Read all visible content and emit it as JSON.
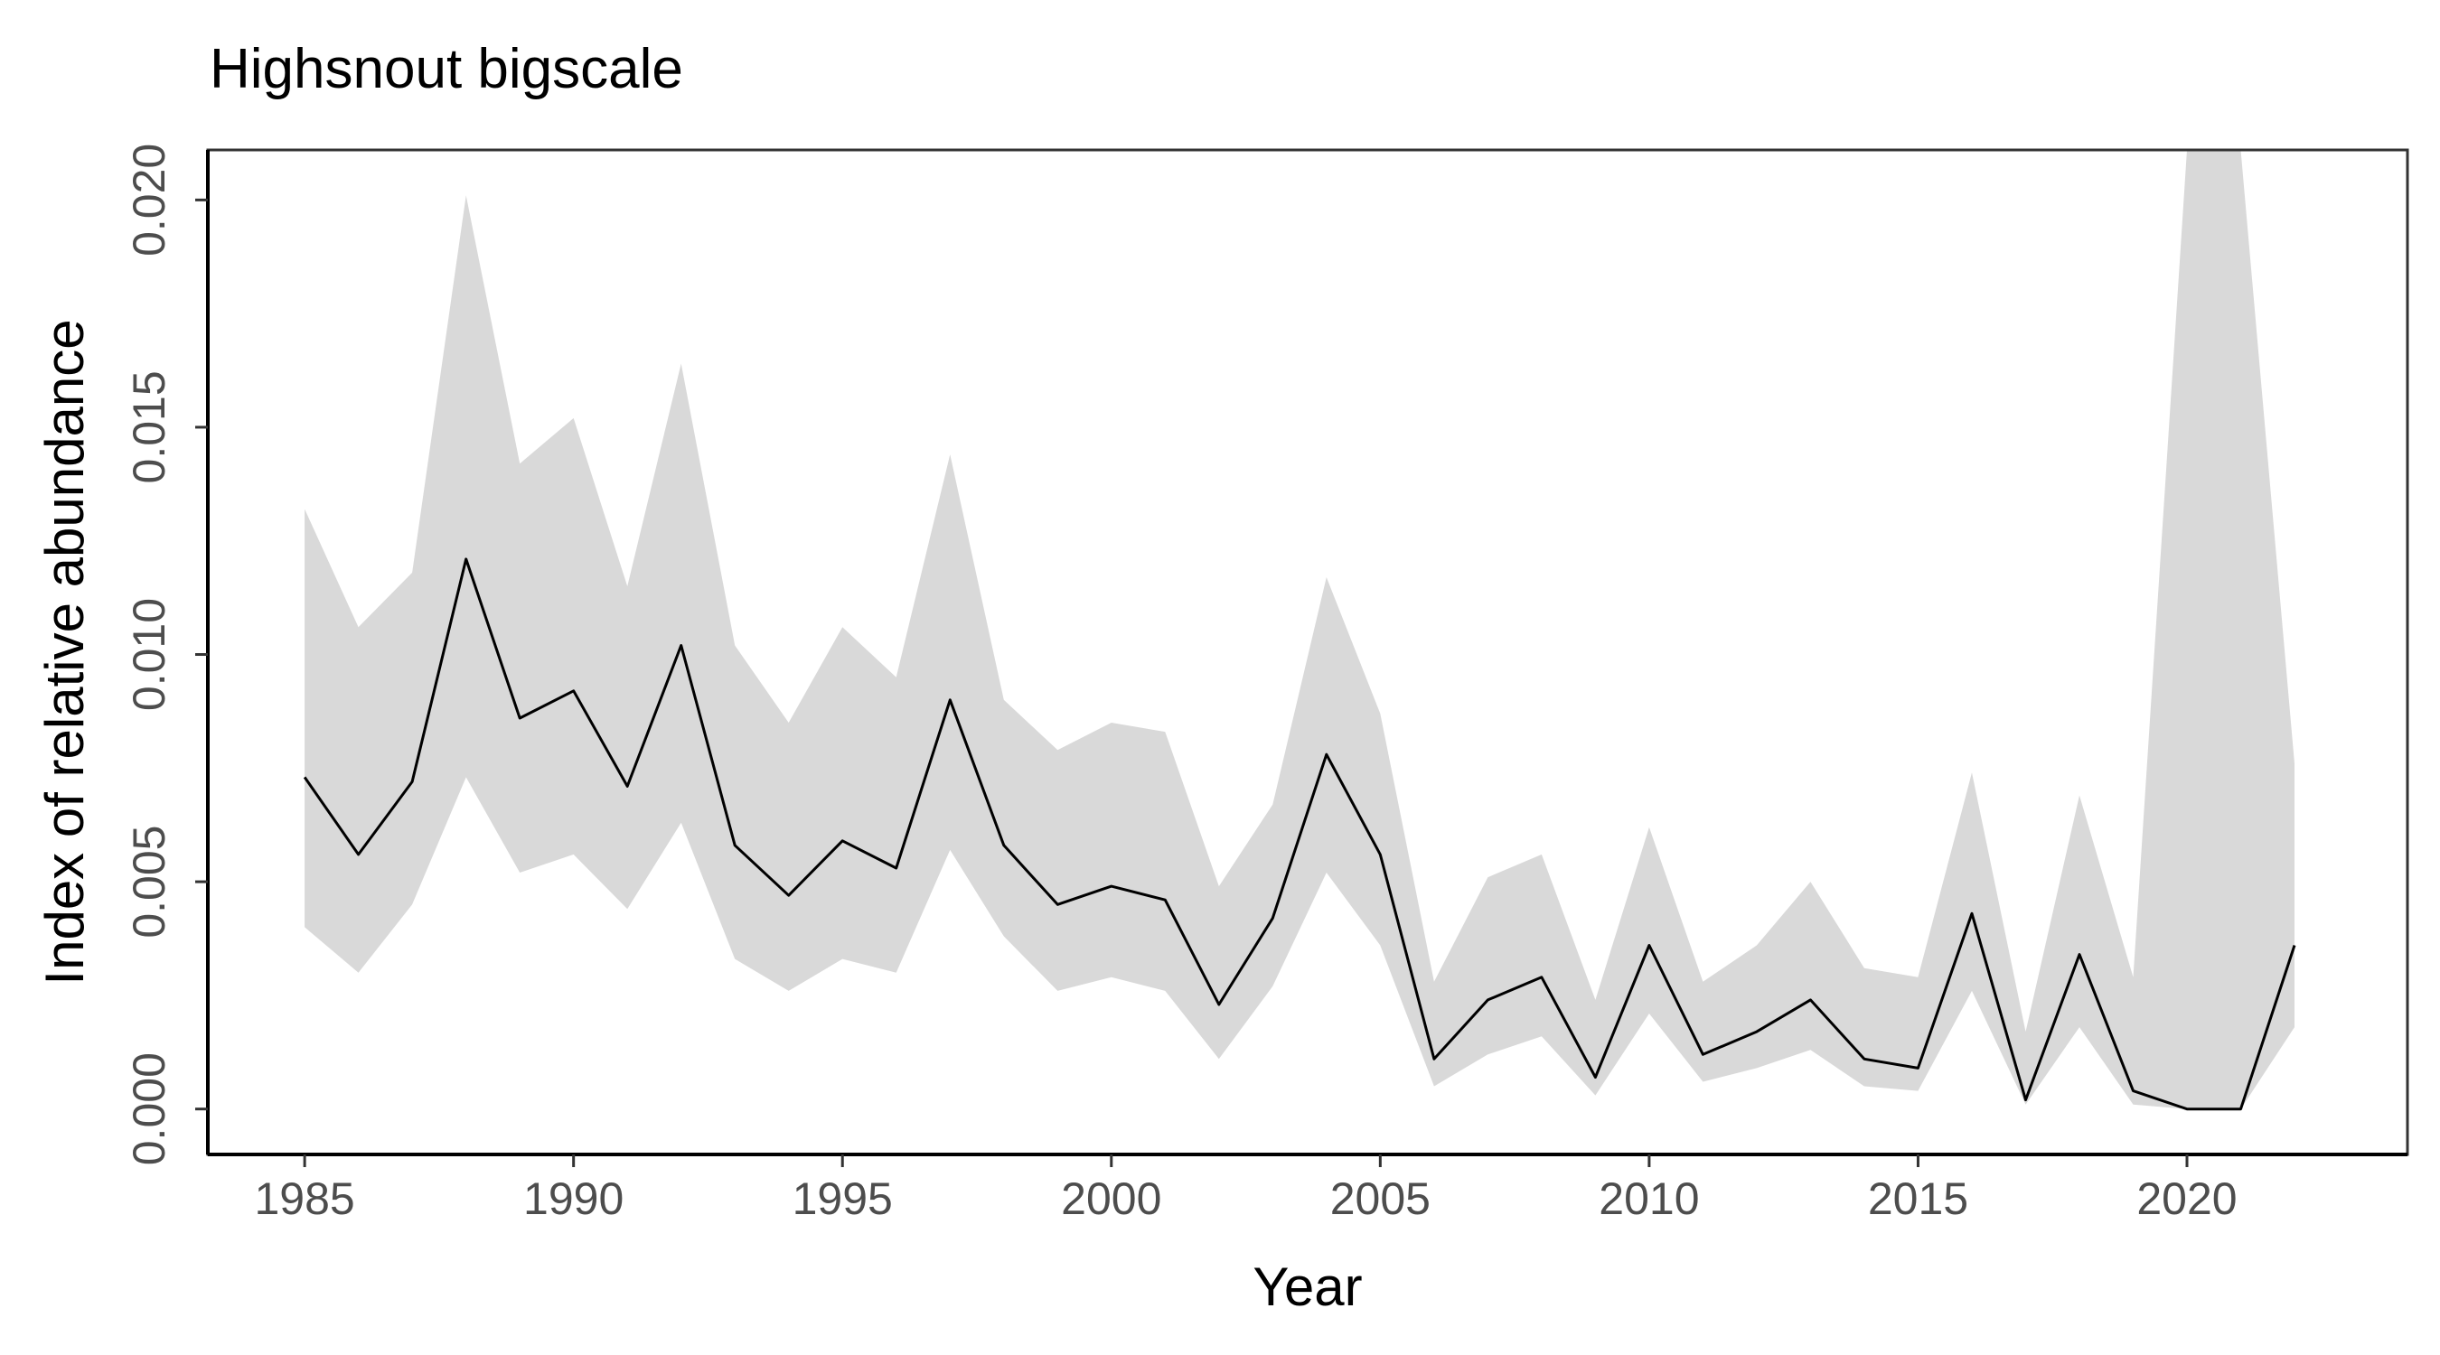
{
  "chart_data": {
    "type": "line",
    "title": "Highsnout bigscale",
    "xlabel": "Year",
    "ylabel": "Index of relative abundance",
    "xlim": [
      1983.2,
      2024.1
    ],
    "ylim": [
      -0.001,
      0.0211
    ],
    "x_ticks": [
      1985,
      1990,
      1995,
      2000,
      2005,
      2010,
      2015,
      2020
    ],
    "x_tick_labels": [
      "1985",
      "1990",
      "1995",
      "2000",
      "2005",
      "2010",
      "2015",
      "2020"
    ],
    "y_ticks": [
      0.0,
      0.005,
      0.01,
      0.015,
      0.02
    ],
    "y_tick_labels": [
      "0.000",
      "0.005",
      "0.010",
      "0.015",
      "0.020"
    ],
    "grid": false,
    "line_color": "#000000",
    "ribbon_color": "#d9d9d9",
    "x": [
      1985,
      1986,
      1987,
      1988,
      1989,
      1990,
      1991,
      1992,
      1993,
      1994,
      1995,
      1996,
      1997,
      1998,
      1999,
      2000,
      2001,
      2002,
      2003,
      2004,
      2005,
      2006,
      2007,
      2008,
      2009,
      2010,
      2011,
      2012,
      2013,
      2014,
      2015,
      2016,
      2017,
      2018,
      2019,
      2020,
      2021,
      2022
    ],
    "series": [
      {
        "values": [
          0.0073,
          0.0056,
          0.0072,
          0.0121,
          0.0086,
          0.0092,
          0.0071,
          0.0102,
          0.0058,
          0.0047,
          0.0059,
          0.0053,
          0.009,
          0.0058,
          0.0045,
          0.0049,
          0.0046,
          0.0023,
          0.0042,
          0.0078,
          0.0056,
          0.0011,
          0.0024,
          0.0029,
          0.0007,
          0.0036,
          0.0012,
          0.0017,
          0.0024,
          0.0011,
          0.0009,
          0.0043,
          0.0002,
          0.0034,
          0.0004,
          0.0,
          0.0,
          0.0036
        ],
        "lower": [
          0.004,
          0.003,
          0.0045,
          0.0073,
          0.0052,
          0.0056,
          0.0044,
          0.0063,
          0.0033,
          0.0026,
          0.0033,
          0.003,
          0.0057,
          0.0038,
          0.0026,
          0.0029,
          0.0026,
          0.0011,
          0.0027,
          0.0052,
          0.0036,
          0.0005,
          0.0012,
          0.0016,
          0.0003,
          0.0021,
          0.0006,
          0.0009,
          0.0013,
          0.0005,
          0.0004,
          0.0026,
          0.0001,
          0.0018,
          0.0001,
          0.0,
          0.0,
          0.0018
        ],
        "upper": [
          0.0132,
          0.0106,
          0.0118,
          0.0201,
          0.0142,
          0.0152,
          0.0115,
          0.0164,
          0.0102,
          0.0085,
          0.0106,
          0.0095,
          0.0144,
          0.009,
          0.0079,
          0.0085,
          0.0083,
          0.0049,
          0.0067,
          0.0117,
          0.0087,
          0.0028,
          0.0051,
          0.0056,
          0.0024,
          0.0062,
          0.0028,
          0.0036,
          0.005,
          0.0031,
          0.0029,
          0.0074,
          0.0017,
          0.0069,
          0.0029,
          0.0211,
          0.0211,
          0.0076
        ]
      }
    ]
  }
}
